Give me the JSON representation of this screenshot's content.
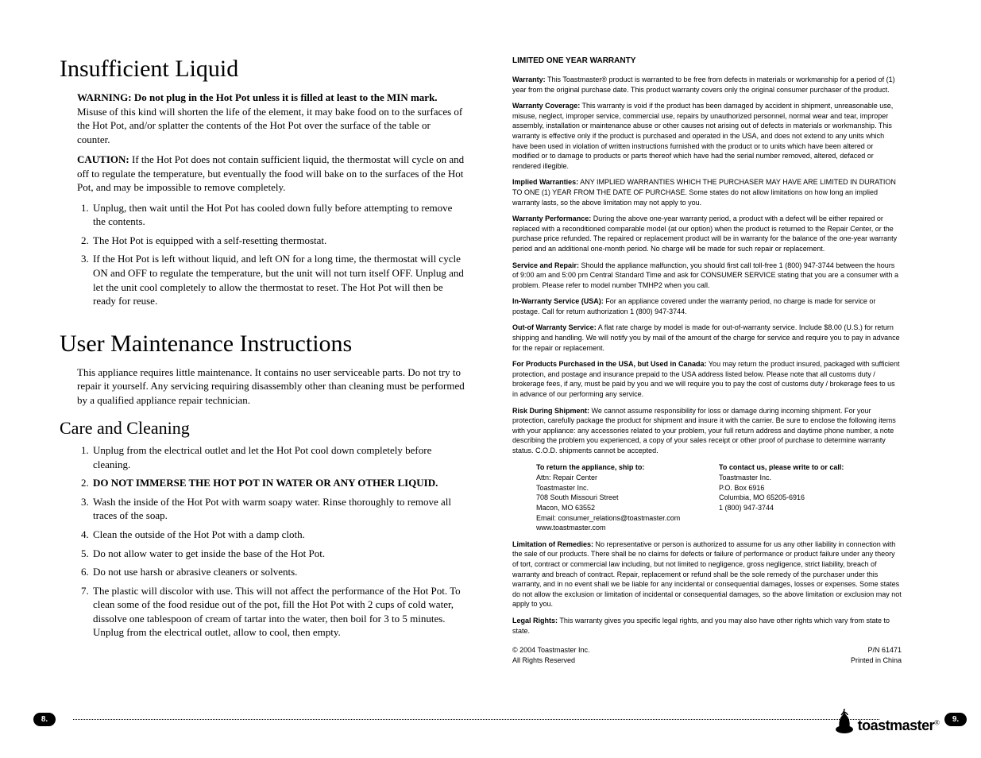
{
  "left": {
    "h_insufficient": "Insufficient Liquid",
    "warning_label": "WARNING: Do not plug in the Hot Pot unless it is filled at least to the MIN mark.",
    "warning_rest": " Misuse of this kind will shorten the life of the element, it may bake food on to the surfaces of the Hot Pot, and/or splatter the contents of the Hot Pot over the surface of the table or counter.",
    "caution_label": "CAUTION:",
    "caution_rest": " If the Hot Pot does not contain sufficient liquid, the thermostat will cycle on and off to regulate the temperature, but eventually the food will bake on to the surfaces of the Hot Pot, and may be impossible to remove completely.",
    "insuff_list": [
      "Unplug, then wait until the Hot Pot has cooled down fully before attempting to remove the contents.",
      "The Hot Pot is equipped with a self-resetting thermostat.",
      "If the Hot Pot is left without liquid, and left ON for a long time, the thermostat will cycle ON and OFF to regulate the temperature, but the unit will not turn itself OFF. Unplug and let the unit cool completely to allow the thermostat to reset. The Hot Pot will then be ready for reuse."
    ],
    "h_maint": "User Maintenance Instructions",
    "maint_para": "This appliance requires little maintenance. It contains no user serviceable parts. Do not try to repair it yourself. Any servicing requiring disassembly other than cleaning must be performed by a qualified appliance repair technician.",
    "h_care": "Care and Cleaning",
    "care_list_1": "Unplug from the electrical outlet and let the Hot Pot cool down completely before cleaning.",
    "care_list_2": "DO NOT IMMERSE THE HOT POT IN WATER OR ANY OTHER LIQUID.",
    "care_list_3": "Wash the inside of the Hot Pot with warm soapy water. Rinse thoroughly to remove all traces of the soap.",
    "care_list_4": "Clean the outside of the Hot Pot with a damp cloth.",
    "care_list_5": "Do not allow water to get inside the base of the Hot Pot.",
    "care_list_6": "Do not use harsh or abrasive cleaners or solvents.",
    "care_list_7": "The plastic will discolor with use. This will not affect the performance of the Hot Pot. To clean some of the food residue out of the pot, fill the Hot Pot with 2 cups of cold water, dissolve one tablespoon of cream of tartar into the water, then boil for 3 to 5 minutes. Unplug from the electrical outlet, allow to cool, then empty."
  },
  "right": {
    "title": "LIMITED ONE YEAR WARRANTY",
    "paras": [
      {
        "lbl": "Warranty:",
        "txt": " This Toastmaster® product is warranted to be free from defects in materials or workmanship for a period of (1) year from the original purchase date. This product warranty covers only the original consumer purchaser of the product."
      },
      {
        "lbl": "Warranty Coverage:",
        "txt": " This warranty is void if the product has been damaged by accident in shipment, unreasonable use, misuse, neglect, improper service, commercial use, repairs by unauthorized personnel, normal wear and tear, improper assembly, installation or maintenance abuse or other causes not arising out of defects in materials or workmanship. This warranty is effective only if the product is purchased and operated in the USA, and does not extend to any units which have been used in violation of written instructions furnished with the product or to units which have been altered or modified or to damage to products or parts thereof which have had the serial number removed, altered, defaced or rendered illegible."
      },
      {
        "lbl": "Implied Warranties:",
        "txt": " ANY IMPLIED WARRANTIES WHICH THE PURCHASER MAY HAVE ARE LIMITED IN DURATION TO ONE (1) YEAR FROM THE DATE OF PURCHASE.  Some states do not allow limitations on how long an implied warranty lasts, so the above limitation may not apply to you."
      },
      {
        "lbl": "Warranty Performance:",
        "txt": " During the above one-year warranty period, a product with a defect will be either repaired or replaced with a reconditioned comparable model (at our option) when the product is returned to the Repair Center, or the purchase price refunded.  The repaired or replacement product will be in warranty for the balance of the one-year warranty period and an additional one-month period.  No charge will be made for such repair or replacement."
      },
      {
        "lbl": "Service and Repair:",
        "txt": " Should the appliance malfunction, you should first call toll-free 1 (800) 947-3744 between the hours of 9:00 am and 5:00 pm Central Standard Time and ask for CONSUMER SERVICE stating that you are a consumer with a problem.  Please refer to model number TMHP2 when you call."
      },
      {
        "lbl": "In-Warranty Service (USA):",
        "txt": " For an appliance covered under the warranty period, no charge is made for service or postage. Call for return authorization 1 (800) 947-3744."
      },
      {
        "lbl": "Out-of Warranty Service:",
        "txt": "  A flat rate charge by model is made for out-of-warranty service.  Include $8.00 (U.S.) for return shipping and handling. We will notify you by mail of the amount of the charge for service and require you to pay in advance for the repair or replacement."
      },
      {
        "lbl": "For Products Purchased in the USA, but Used in Canada:",
        "txt": "  You may return the product insured, packaged with sufficient protection, and postage and insurance prepaid to the USA address listed below.  Please note that all customs duty / brokerage fees, if any, must be paid by you and we will require you to pay the cost of customs duty / brokerage fees to us in advance of our performing any service."
      },
      {
        "lbl": "Risk During Shipment:",
        "txt": " We cannot assume responsibility for loss or damage during incoming shipment.  For your protection, carefully package the product for shipment and insure it with the carrier.  Be sure to enclose the following items with your appliance: any accessories related to your problem, your full return address and daytime phone number, a note describing the problem you experienced, a copy of your sales receipt or other proof of purchase to determine warranty status.  C.O.D. shipments cannot be accepted."
      }
    ],
    "addr_ship_hd": "To return the appliance, ship to:",
    "addr_ship": [
      "Attn: Repair Center",
      "Toastmaster Inc.",
      "708 South Missouri Street",
      "Macon, MO 63552",
      "Email: consumer_relations@toastmaster.com",
      "www.toastmaster.com"
    ],
    "addr_contact_hd": "To contact us, please write to or call:",
    "addr_contact": [
      "Toastmaster Inc.",
      "P.O. Box 6916",
      "Columbia, MO 65205-6916",
      "1 (800) 947-3744"
    ],
    "paras2": [
      {
        "lbl": "Limitation of Remedies:",
        "txt": " No representative or person is authorized to assume for us any other liability in connection with the sale of our products.  There shall be no claims for defects or failure of performance or product failure under any theory of tort, contract or commercial law including, but not limited to negligence, gross negligence, strict liability, breach of warranty and breach of contract.  Repair, replacement or refund shall be the sole remedy of the purchaser under this warranty, and in no event shall we be liable for any incidental or consequential damages, losses or expenses.  Some states do not allow the exclusion or limitation of incidental or consequential damages, so the above limitation or exclusion may not apply to you."
      },
      {
        "lbl": "Legal Rights:",
        "txt": "  This warranty gives you specific legal rights, and you may also have other rights which vary from state to state."
      }
    ],
    "copyright": "© 2004 Toastmaster Inc.",
    "rights": "All Rights Reserved",
    "pn": "P/N 61471",
    "printed": "Printed in China"
  },
  "footer": {
    "page_left": "8.",
    "page_right": "9.",
    "brand": "toastmaster"
  },
  "colors": {
    "text": "#000000",
    "bg": "#ffffff"
  }
}
